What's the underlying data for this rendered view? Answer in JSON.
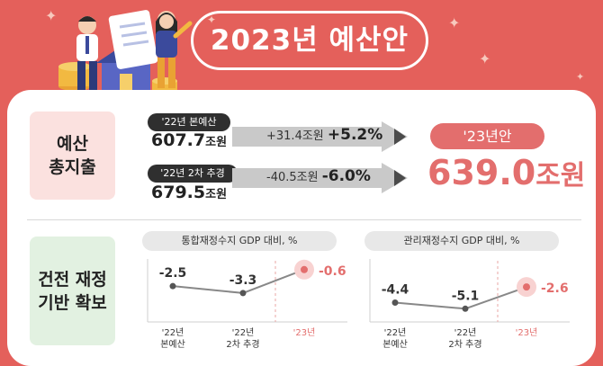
{
  "header": {
    "title": "2023년 예산안"
  },
  "budget": {
    "label_line1": "예산",
    "label_line2": "총지출",
    "prev_main": {
      "tag": "'22년 본예산",
      "amount": "607.7",
      "unit": "조원",
      "change_amount": "+31.4조원",
      "change_pct": "+5.2%"
    },
    "prev_supp": {
      "tag": "'22년 2차 추경",
      "amount": "679.5",
      "unit": "조원",
      "change_amount": "-40.5조원",
      "change_pct": "-6.0%"
    },
    "new_tag": "'23년안",
    "new_amount": "639.0",
    "new_unit": "조원"
  },
  "fiscal": {
    "label_line1": "건전 재정",
    "label_line2": "기반 확보"
  },
  "charts": {
    "colors": {
      "line": "#888888",
      "highlight": "#e36e6d",
      "text": "#333333"
    },
    "left": {
      "title": "통합재정수지 GDP 대비, %",
      "points": [
        {
          "label1": "'22년",
          "label2": "본예산",
          "value": -2.5,
          "value_text": "-2.5"
        },
        {
          "label1": "'22년",
          "label2": "2차 추경",
          "value": -3.3,
          "value_text": "-3.3"
        },
        {
          "label1": "'23년",
          "label2": "",
          "value": -0.6,
          "value_text": "-0.6"
        }
      ]
    },
    "right": {
      "title": "관리재정수지 GDP 대비, %",
      "points": [
        {
          "label1": "'22년",
          "label2": "본예산",
          "value": -4.4,
          "value_text": "-4.4"
        },
        {
          "label1": "'22년",
          "label2": "2차 추경",
          "value": -5.1,
          "value_text": "-5.1"
        },
        {
          "label1": "'23년",
          "label2": "",
          "value": -2.6,
          "value_text": "-2.6"
        }
      ]
    }
  }
}
